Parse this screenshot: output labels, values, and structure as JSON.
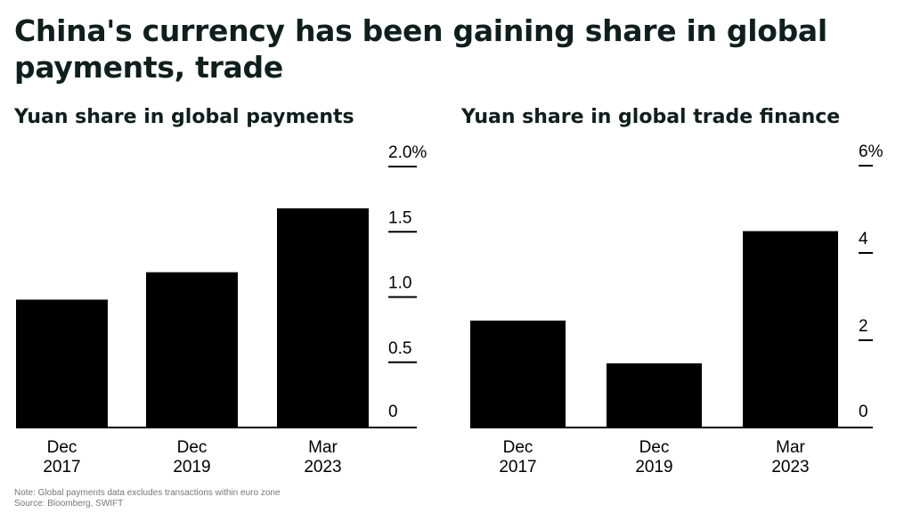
{
  "title": "China's currency has been gaining share in global payments, trade",
  "colors": {
    "bar": "#000000",
    "text": "#000000",
    "title": "#0f1f1d",
    "note": "#777777"
  },
  "chart_data": [
    {
      "type": "bar",
      "title": "Yuan share in global payments",
      "categories": [
        [
          "Dec",
          "2017"
        ],
        [
          "Dec",
          "2019"
        ],
        [
          "Mar",
          "2023"
        ]
      ],
      "values": [
        0.98,
        1.19,
        1.68
      ],
      "ylim": [
        0,
        2.0
      ],
      "yticks": [
        0,
        0.5,
        1.0,
        1.5,
        2.0
      ],
      "ytick_labels": [
        "0",
        "0.5",
        "1.0",
        "1.5",
        "2.0%"
      ],
      "axis_position": "right",
      "grid": false
    },
    {
      "type": "bar",
      "title": "Yuan share in global trade finance",
      "categories": [
        [
          "Dec",
          "2017"
        ],
        [
          "Dec",
          "2019"
        ],
        [
          "Mar",
          "2023"
        ]
      ],
      "values": [
        2.45,
        1.47,
        4.5
      ],
      "ylim": [
        0,
        6
      ],
      "yticks": [
        0,
        2,
        4,
        6
      ],
      "ytick_labels": [
        "0",
        "2",
        "4",
        "6%"
      ],
      "axis_position": "right",
      "grid": false
    }
  ],
  "note": {
    "line1": "Note: Global payments data excludes transactions within euro zone",
    "line2": "Source: Bloomberg, SWIFT"
  }
}
